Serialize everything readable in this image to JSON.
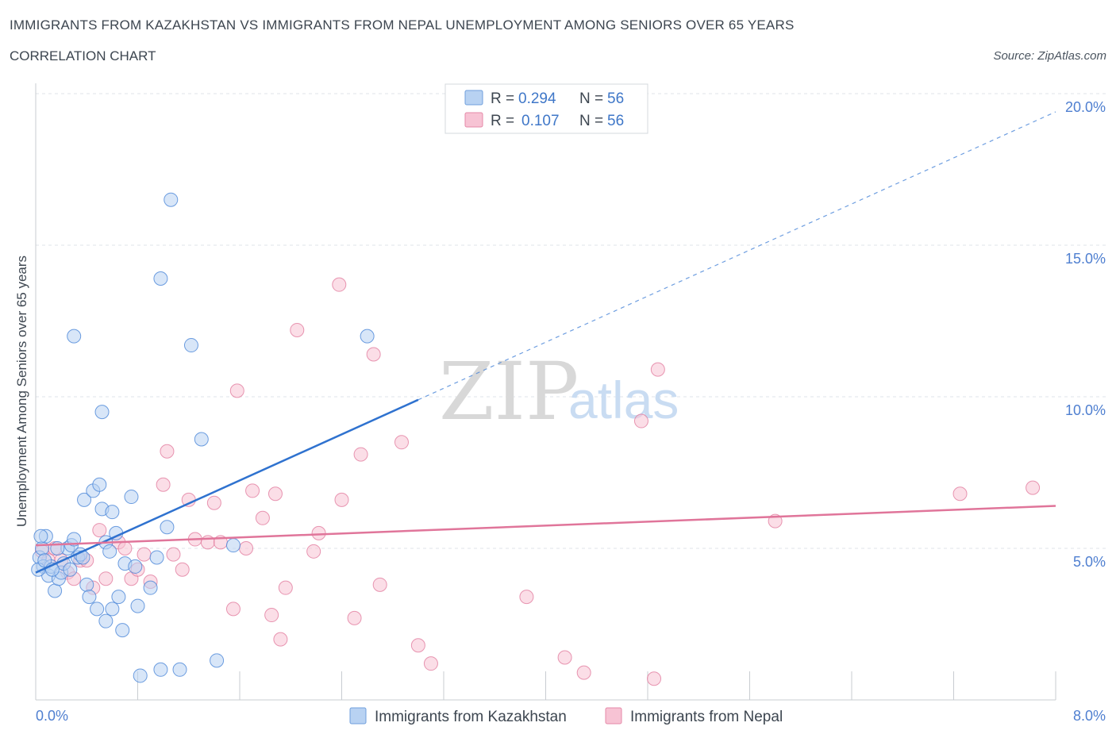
{
  "title": "IMMIGRANTS FROM KAZAKHSTAN VS IMMIGRANTS FROM NEPAL UNEMPLOYMENT AMONG SENIORS OVER 65 YEARS",
  "subtitle": "CORRELATION CHART",
  "source": "Source: ZipAtlas.com",
  "watermark": {
    "zip": "ZIP",
    "atlas": "atlas"
  },
  "colors": {
    "kazakhstan": "#4a86d8",
    "nepal": "#e0759a",
    "kazakhstan_fill": "#b8d2f2",
    "nepal_fill": "#f7c3d4"
  },
  "legend": [
    {
      "r_label": "R =",
      "r_value": "0.294",
      "n_label": "N =",
      "n_value": "56"
    },
    {
      "r_label": "R =",
      "r_value": "0.107",
      "n_label": "N =",
      "n_value": "56"
    }
  ],
  "chart_data": {
    "type": "scatter",
    "title": "IMMIGRANTS FROM KAZAKHSTAN VS IMMIGRANTS FROM NEPAL UNEMPLOYMENT AMONG SENIORS OVER 65 YEARS",
    "xlabel": "",
    "ylabel": "Unemployment Among Seniors over 65 years",
    "xlim": [
      0,
      8
    ],
    "ylim": [
      0,
      20
    ],
    "x_tick_labels": [
      "0.0%",
      "8.0%"
    ],
    "y_ticks": [
      5,
      10,
      15,
      20
    ],
    "y_tick_labels": [
      "5.0%",
      "10.0%",
      "15.0%",
      "20.0%"
    ],
    "series": [
      {
        "name": "Immigrants from Kazakhstan",
        "trend": {
          "x0": 0.0,
          "y0": 4.2,
          "x1": 3.0,
          "y1": 9.9,
          "x_ext": 8.0,
          "y_ext": 19.4
        },
        "points": [
          [
            0.03,
            4.7
          ],
          [
            0.05,
            5.0
          ],
          [
            0.06,
            4.4
          ],
          [
            0.08,
            5.4
          ],
          [
            0.1,
            4.1
          ],
          [
            0.12,
            4.4
          ],
          [
            0.15,
            3.6
          ],
          [
            0.18,
            4.0
          ],
          [
            0.2,
            4.2
          ],
          [
            0.22,
            4.5
          ],
          [
            0.25,
            5.0
          ],
          [
            0.28,
            5.1
          ],
          [
            0.3,
            5.3
          ],
          [
            0.33,
            4.7
          ],
          [
            0.35,
            4.8
          ],
          [
            0.38,
            6.6
          ],
          [
            0.4,
            3.8
          ],
          [
            0.42,
            3.4
          ],
          [
            0.45,
            6.9
          ],
          [
            0.48,
            3.0
          ],
          [
            0.5,
            7.1
          ],
          [
            0.52,
            6.3
          ],
          [
            0.55,
            5.2
          ],
          [
            0.58,
            4.9
          ],
          [
            0.6,
            3.0
          ],
          [
            0.63,
            5.5
          ],
          [
            0.65,
            3.4
          ],
          [
            0.68,
            2.3
          ],
          [
            0.7,
            4.5
          ],
          [
            0.75,
            6.7
          ],
          [
            0.78,
            4.4
          ],
          [
            0.8,
            3.1
          ],
          [
            0.82,
            0.8
          ],
          [
            0.9,
            3.7
          ],
          [
            0.95,
            4.7
          ],
          [
            0.98,
            1.0
          ],
          [
            1.03,
            5.7
          ],
          [
            0.3,
            12.0
          ],
          [
            0.52,
            9.5
          ],
          [
            0.98,
            13.9
          ],
          [
            1.06,
            16.5
          ],
          [
            1.13,
            1.0
          ],
          [
            1.22,
            11.7
          ],
          [
            1.3,
            8.6
          ],
          [
            1.42,
            1.3
          ],
          [
            1.55,
            5.1
          ],
          [
            2.6,
            12.0
          ],
          [
            0.55,
            2.6
          ],
          [
            0.02,
            4.3
          ],
          [
            0.04,
            5.4
          ],
          [
            0.07,
            4.6
          ],
          [
            0.13,
            4.3
          ],
          [
            0.17,
            5.0
          ],
          [
            0.27,
            4.3
          ],
          [
            0.37,
            4.7
          ],
          [
            0.6,
            6.2
          ]
        ]
      },
      {
        "name": "Immigrants from Nepal",
        "trend": {
          "x0": 0.0,
          "y0": 5.1,
          "x1": 8.0,
          "y1": 6.4
        },
        "points": [
          [
            0.05,
            4.9
          ],
          [
            0.1,
            4.6
          ],
          [
            0.15,
            5.0
          ],
          [
            0.2,
            4.6
          ],
          [
            0.25,
            4.2
          ],
          [
            0.3,
            4.0
          ],
          [
            0.35,
            4.6
          ],
          [
            0.4,
            4.6
          ],
          [
            0.45,
            3.7
          ],
          [
            0.5,
            5.6
          ],
          [
            0.55,
            4.0
          ],
          [
            0.65,
            5.2
          ],
          [
            0.7,
            5.0
          ],
          [
            0.75,
            4.0
          ],
          [
            0.8,
            4.3
          ],
          [
            0.85,
            4.8
          ],
          [
            0.9,
            3.9
          ],
          [
            1.0,
            7.1
          ],
          [
            1.03,
            8.2
          ],
          [
            1.08,
            4.8
          ],
          [
            1.15,
            4.3
          ],
          [
            1.2,
            6.6
          ],
          [
            1.25,
            5.3
          ],
          [
            1.35,
            5.2
          ],
          [
            1.4,
            6.5
          ],
          [
            1.45,
            5.2
          ],
          [
            1.55,
            3.0
          ],
          [
            1.58,
            10.2
          ],
          [
            1.65,
            5.0
          ],
          [
            1.7,
            6.9
          ],
          [
            1.78,
            6.0
          ],
          [
            1.85,
            2.8
          ],
          [
            1.88,
            6.8
          ],
          [
            1.92,
            2.0
          ],
          [
            1.96,
            3.7
          ],
          [
            2.05,
            12.2
          ],
          [
            2.18,
            4.9
          ],
          [
            2.22,
            5.5
          ],
          [
            2.38,
            13.7
          ],
          [
            2.4,
            6.6
          ],
          [
            2.5,
            2.7
          ],
          [
            2.55,
            8.1
          ],
          [
            2.65,
            11.4
          ],
          [
            2.7,
            3.8
          ],
          [
            2.87,
            8.5
          ],
          [
            3.0,
            1.8
          ],
          [
            3.1,
            1.2
          ],
          [
            3.85,
            3.4
          ],
          [
            4.15,
            1.4
          ],
          [
            4.3,
            0.9
          ],
          [
            4.75,
            9.2
          ],
          [
            4.85,
            0.7
          ],
          [
            4.88,
            10.9
          ],
          [
            5.8,
            5.9
          ],
          [
            7.25,
            6.8
          ],
          [
            7.82,
            7.0
          ]
        ]
      }
    ]
  },
  "bottom_legend": [
    {
      "label": "Immigrants from Kazakhstan"
    },
    {
      "label": "Immigrants from Nepal"
    }
  ]
}
